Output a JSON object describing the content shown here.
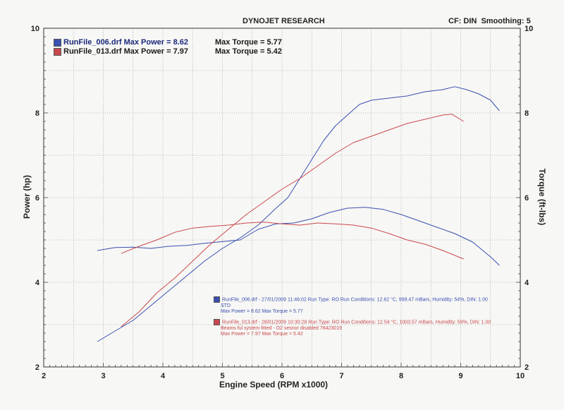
{
  "header": {
    "title": "DYNOJET RESEARCH",
    "settings": "CF: DIN  Smoothing: 5"
  },
  "legend": [
    {
      "file": "RunFile_006.drf",
      "power_text": "Max Power = 8.62",
      "torque_text": "Max Torque = 5.77",
      "color": "#3a4fb0"
    },
    {
      "file": "RunFile_013.drf",
      "power_text": "Max Power = 7.97",
      "torque_text": "Max Torque = 5.42",
      "color": "#c9484d"
    }
  ],
  "run_info": [
    {
      "line1": "RunFile_006.drf - 27/01/2009 11:46:02  Run Type: RO  Run Conditions: 12.62 °C, 999.47 mBars,  Humidity:  54%, DIN: 1.00",
      "line2": "STD",
      "line3": "Max Power = 8.62  Max Torque = 5.77",
      "color": "#3a4fb0"
    },
    {
      "line1": "RunFile_013.drf - 28/01/2009 10:30:28  Run Type: RO  Run Conditions: 12.54 °C, 1003.57 mBars,  Humidity:  59%, DIN: 1.00",
      "line2": "Beams ful system fitted - O2 sesnor disabled 76423019",
      "line3": "Max Power = 7.97  Max Torque = 5.42",
      "color": "#c9484d"
    }
  ],
  "chart_data": {
    "type": "line",
    "title": "DYNOJET RESEARCH",
    "xlabel": "Engine Speed (RPM x1000)",
    "ylabel_left": "Power (hp)",
    "ylabel_right": "Torque (ft-lbs)",
    "xlim": [
      2,
      10
    ],
    "ylim": [
      2,
      10
    ],
    "x_ticks": [
      "2",
      "3",
      "4",
      "5",
      "6",
      "7",
      "8",
      "9",
      "10"
    ],
    "y_ticks": [
      "2",
      "4",
      "6",
      "8",
      "10"
    ],
    "grid": true,
    "series": [
      {
        "name": "RunFile_006.drf",
        "measure": "power",
        "color": "#3a4fb0",
        "x": [
          2.9,
          3.2,
          3.5,
          3.8,
          4.1,
          4.4,
          4.7,
          5.0,
          5.3,
          5.6,
          5.9,
          6.1,
          6.3,
          6.5,
          6.7,
          6.9,
          7.1,
          7.3,
          7.5,
          7.8,
          8.1,
          8.4,
          8.7,
          8.9,
          9.1,
          9.3,
          9.5,
          9.65
        ],
        "y": [
          2.6,
          2.85,
          3.1,
          3.45,
          3.8,
          4.15,
          4.5,
          4.8,
          5.05,
          5.35,
          5.75,
          6.0,
          6.45,
          6.9,
          7.35,
          7.7,
          7.95,
          8.2,
          8.3,
          8.35,
          8.4,
          8.5,
          8.55,
          8.62,
          8.55,
          8.45,
          8.3,
          8.05
        ]
      },
      {
        "name": "RunFile_006.drf",
        "measure": "torque",
        "color": "#3a4fb0",
        "x": [
          2.9,
          3.2,
          3.5,
          3.8,
          4.1,
          4.4,
          4.7,
          5.0,
          5.3,
          5.6,
          5.9,
          6.2,
          6.5,
          6.8,
          7.1,
          7.4,
          7.7,
          8.0,
          8.3,
          8.6,
          8.9,
          9.2,
          9.5,
          9.65
        ],
        "y": [
          4.75,
          4.82,
          4.83,
          4.8,
          4.85,
          4.87,
          4.92,
          4.96,
          5.0,
          5.25,
          5.38,
          5.4,
          5.5,
          5.65,
          5.75,
          5.77,
          5.72,
          5.6,
          5.45,
          5.3,
          5.15,
          4.95,
          4.6,
          4.4
        ]
      },
      {
        "name": "RunFile_013.drf",
        "measure": "power",
        "color": "#c9484d",
        "x": [
          3.3,
          3.6,
          3.9,
          4.2,
          4.5,
          4.8,
          5.1,
          5.4,
          5.7,
          6.0,
          6.3,
          6.6,
          6.9,
          7.2,
          7.5,
          7.8,
          8.1,
          8.4,
          8.7,
          8.85,
          9.05
        ],
        "y": [
          2.95,
          3.3,
          3.75,
          4.1,
          4.5,
          4.9,
          5.25,
          5.6,
          5.9,
          6.2,
          6.45,
          6.75,
          7.05,
          7.3,
          7.45,
          7.6,
          7.75,
          7.85,
          7.95,
          7.97,
          7.8
        ]
      },
      {
        "name": "RunFile_013.drf",
        "measure": "torque",
        "color": "#c9484d",
        "x": [
          3.3,
          3.6,
          3.9,
          4.2,
          4.5,
          4.8,
          5.1,
          5.4,
          5.7,
          6.0,
          6.3,
          6.6,
          6.9,
          7.2,
          7.5,
          7.8,
          8.1,
          8.4,
          8.7,
          9.05
        ],
        "y": [
          4.68,
          4.85,
          5.0,
          5.18,
          5.28,
          5.32,
          5.35,
          5.4,
          5.42,
          5.38,
          5.35,
          5.4,
          5.38,
          5.35,
          5.28,
          5.15,
          5.0,
          4.9,
          4.75,
          4.55
        ]
      }
    ]
  }
}
